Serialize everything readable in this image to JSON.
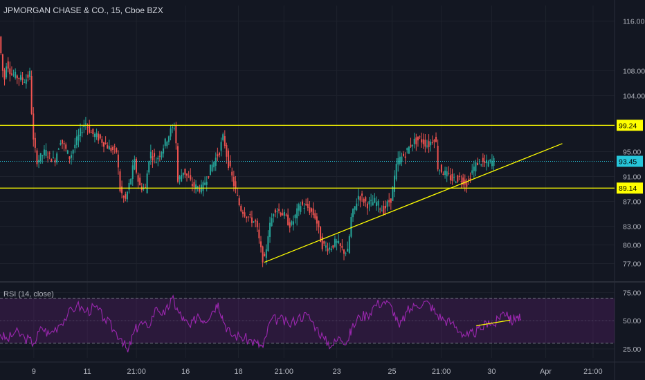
{
  "header": {
    "title": "JPMORGAN CHASE & CO., 15, Cboe BZX"
  },
  "rsi_panel": {
    "label": "RSI (14, close)"
  },
  "colors": {
    "background": "#131722",
    "up": "#26a69a",
    "down": "#ef5350",
    "level": "#ffff00",
    "current": "#26c6da",
    "rsi": "#9c27b0",
    "grid": "#1e222d"
  },
  "chart_data": [
    {
      "type": "candlestick",
      "title": "JPMORGAN CHASE & CO., 15, Cboe BZX",
      "yticks": [
        116.0,
        108.0,
        104.0,
        95.0,
        91.0,
        87.0,
        83.0,
        80.0,
        77.0
      ],
      "ylim": [
        74.5,
        118.5
      ],
      "xticks": [
        "9",
        "11",
        "21:00",
        "16",
        "18",
        "21:00",
        "23",
        "25",
        "21:00",
        "30",
        "Apr",
        "21:00"
      ],
      "price_labels": [
        {
          "value": 99.24,
          "text": "99.24",
          "kind": "level"
        },
        {
          "value": 93.45,
          "text": "93.45",
          "kind": "current"
        },
        {
          "value": 89.14,
          "text": "89.14",
          "kind": "level"
        }
      ],
      "horizontal_levels": [
        99.24,
        89.14
      ],
      "current_price": 93.45,
      "trendline": {
        "from": [
          0.43,
          77.2
        ],
        "to": [
          0.915,
          96.3
        ]
      },
      "price_path": [
        [
          0.0,
          113.5
        ],
        [
          0.008,
          106.0
        ],
        [
          0.012,
          109.5
        ],
        [
          0.02,
          107.5
        ],
        [
          0.03,
          107.0
        ],
        [
          0.042,
          106.5
        ],
        [
          0.05,
          107.5
        ],
        [
          0.055,
          97.0
        ],
        [
          0.062,
          93.5
        ],
        [
          0.075,
          95.0
        ],
        [
          0.09,
          93.5
        ],
        [
          0.1,
          97.0
        ],
        [
          0.115,
          94.0
        ],
        [
          0.125,
          96.5
        ],
        [
          0.14,
          99.8
        ],
        [
          0.15,
          98.0
        ],
        [
          0.165,
          97.0
        ],
        [
          0.18,
          95.5
        ],
        [
          0.192,
          95.0
        ],
        [
          0.196,
          89.0
        ],
        [
          0.205,
          87.0
        ],
        [
          0.215,
          91.0
        ],
        [
          0.22,
          93.5
        ],
        [
          0.228,
          89.5
        ],
        [
          0.238,
          89.0
        ],
        [
          0.245,
          95.0
        ],
        [
          0.255,
          93.5
        ],
        [
          0.268,
          96.0
        ],
        [
          0.28,
          98.5
        ],
        [
          0.287,
          99.3
        ],
        [
          0.29,
          90.0
        ],
        [
          0.3,
          92.0
        ],
        [
          0.315,
          89.5
        ],
        [
          0.33,
          89.0
        ],
        [
          0.345,
          92.5
        ],
        [
          0.358,
          95.0
        ],
        [
          0.365,
          97.5
        ],
        [
          0.372,
          93.5
        ],
        [
          0.38,
          90.5
        ],
        [
          0.392,
          86.0
        ],
        [
          0.405,
          84.5
        ],
        [
          0.418,
          83.5
        ],
        [
          0.428,
          78.0
        ],
        [
          0.432,
          77.5
        ],
        [
          0.438,
          82.0
        ],
        [
          0.448,
          86.0
        ],
        [
          0.462,
          85.0
        ],
        [
          0.475,
          83.0
        ],
        [
          0.49,
          86.5
        ],
        [
          0.502,
          86.0
        ],
        [
          0.515,
          84.5
        ],
        [
          0.525,
          80.0
        ],
        [
          0.538,
          79.5
        ],
        [
          0.548,
          80.5
        ],
        [
          0.56,
          79.0
        ],
        [
          0.568,
          78.8
        ],
        [
          0.572,
          84.0
        ],
        [
          0.585,
          88.0
        ],
        [
          0.6,
          86.5
        ],
        [
          0.612,
          87.0
        ],
        [
          0.625,
          85.5
        ],
        [
          0.638,
          87.5
        ],
        [
          0.648,
          93.5
        ],
        [
          0.66,
          94.5
        ],
        [
          0.672,
          96.5
        ],
        [
          0.685,
          97.0
        ],
        [
          0.698,
          96.0
        ],
        [
          0.71,
          97.5
        ],
        [
          0.714,
          92.5
        ],
        [
          0.725,
          91.5
        ],
        [
          0.738,
          90.5
        ],
        [
          0.75,
          90.8
        ],
        [
          0.762,
          89.8
        ],
        [
          0.77,
          92.0
        ],
        [
          0.78,
          93.5
        ],
        [
          0.792,
          93.0
        ],
        [
          0.805,
          93.5
        ]
      ]
    },
    {
      "type": "line",
      "title": "RSI (14, close)",
      "yticks": [
        75.0,
        50.0,
        25.0
      ],
      "ylim": [
        17,
        82
      ],
      "band": [
        30,
        70
      ],
      "trendline": {
        "from": [
          0.775,
          45.5
        ],
        "to": [
          0.83,
          50.5
        ]
      },
      "series": [
        {
          "values": [
            [
              0.0,
              38
            ],
            [
              0.012,
              33
            ],
            [
              0.025,
              40
            ],
            [
              0.04,
              35
            ],
            [
              0.055,
              30
            ],
            [
              0.068,
              44
            ],
            [
              0.08,
              38
            ],
            [
              0.095,
              46
            ],
            [
              0.11,
              55
            ],
            [
              0.125,
              64
            ],
            [
              0.14,
              58
            ],
            [
              0.155,
              62
            ],
            [
              0.17,
              52
            ],
            [
              0.185,
              42
            ],
            [
              0.198,
              34
            ],
            [
              0.208,
              22
            ],
            [
              0.218,
              40
            ],
            [
              0.228,
              48
            ],
            [
              0.24,
              44
            ],
            [
              0.255,
              62
            ],
            [
              0.268,
              55
            ],
            [
              0.28,
              70
            ],
            [
              0.29,
              58
            ],
            [
              0.3,
              50
            ],
            [
              0.31,
              44
            ],
            [
              0.322,
              56
            ],
            [
              0.332,
              50
            ],
            [
              0.345,
              58
            ],
            [
              0.355,
              66
            ],
            [
              0.365,
              48
            ],
            [
              0.375,
              38
            ],
            [
              0.39,
              36
            ],
            [
              0.405,
              33
            ],
            [
              0.418,
              30
            ],
            [
              0.428,
              26
            ],
            [
              0.44,
              50
            ],
            [
              0.455,
              52
            ],
            [
              0.47,
              46
            ],
            [
              0.485,
              53
            ],
            [
              0.5,
              55
            ],
            [
              0.515,
              44
            ],
            [
              0.528,
              33
            ],
            [
              0.54,
              28
            ],
            [
              0.553,
              35
            ],
            [
              0.565,
              32
            ],
            [
              0.572,
              42
            ],
            [
              0.585,
              54
            ],
            [
              0.598,
              55
            ],
            [
              0.61,
              64
            ],
            [
              0.625,
              67
            ],
            [
              0.638,
              62
            ],
            [
              0.65,
              44
            ],
            [
              0.662,
              58
            ],
            [
              0.675,
              63
            ],
            [
              0.69,
              67
            ],
            [
              0.7,
              64
            ],
            [
              0.71,
              56
            ],
            [
              0.722,
              51
            ],
            [
              0.735,
              48
            ],
            [
              0.75,
              40
            ],
            [
              0.762,
              36
            ],
            [
              0.77,
              39
            ],
            [
              0.782,
              42
            ],
            [
              0.795,
              50
            ],
            [
              0.805,
              46
            ],
            [
              0.815,
              56
            ],
            [
              0.825,
              58
            ],
            [
              0.832,
              49
            ],
            [
              0.84,
              54
            ],
            [
              0.848,
              51
            ]
          ]
        }
      ]
    }
  ]
}
